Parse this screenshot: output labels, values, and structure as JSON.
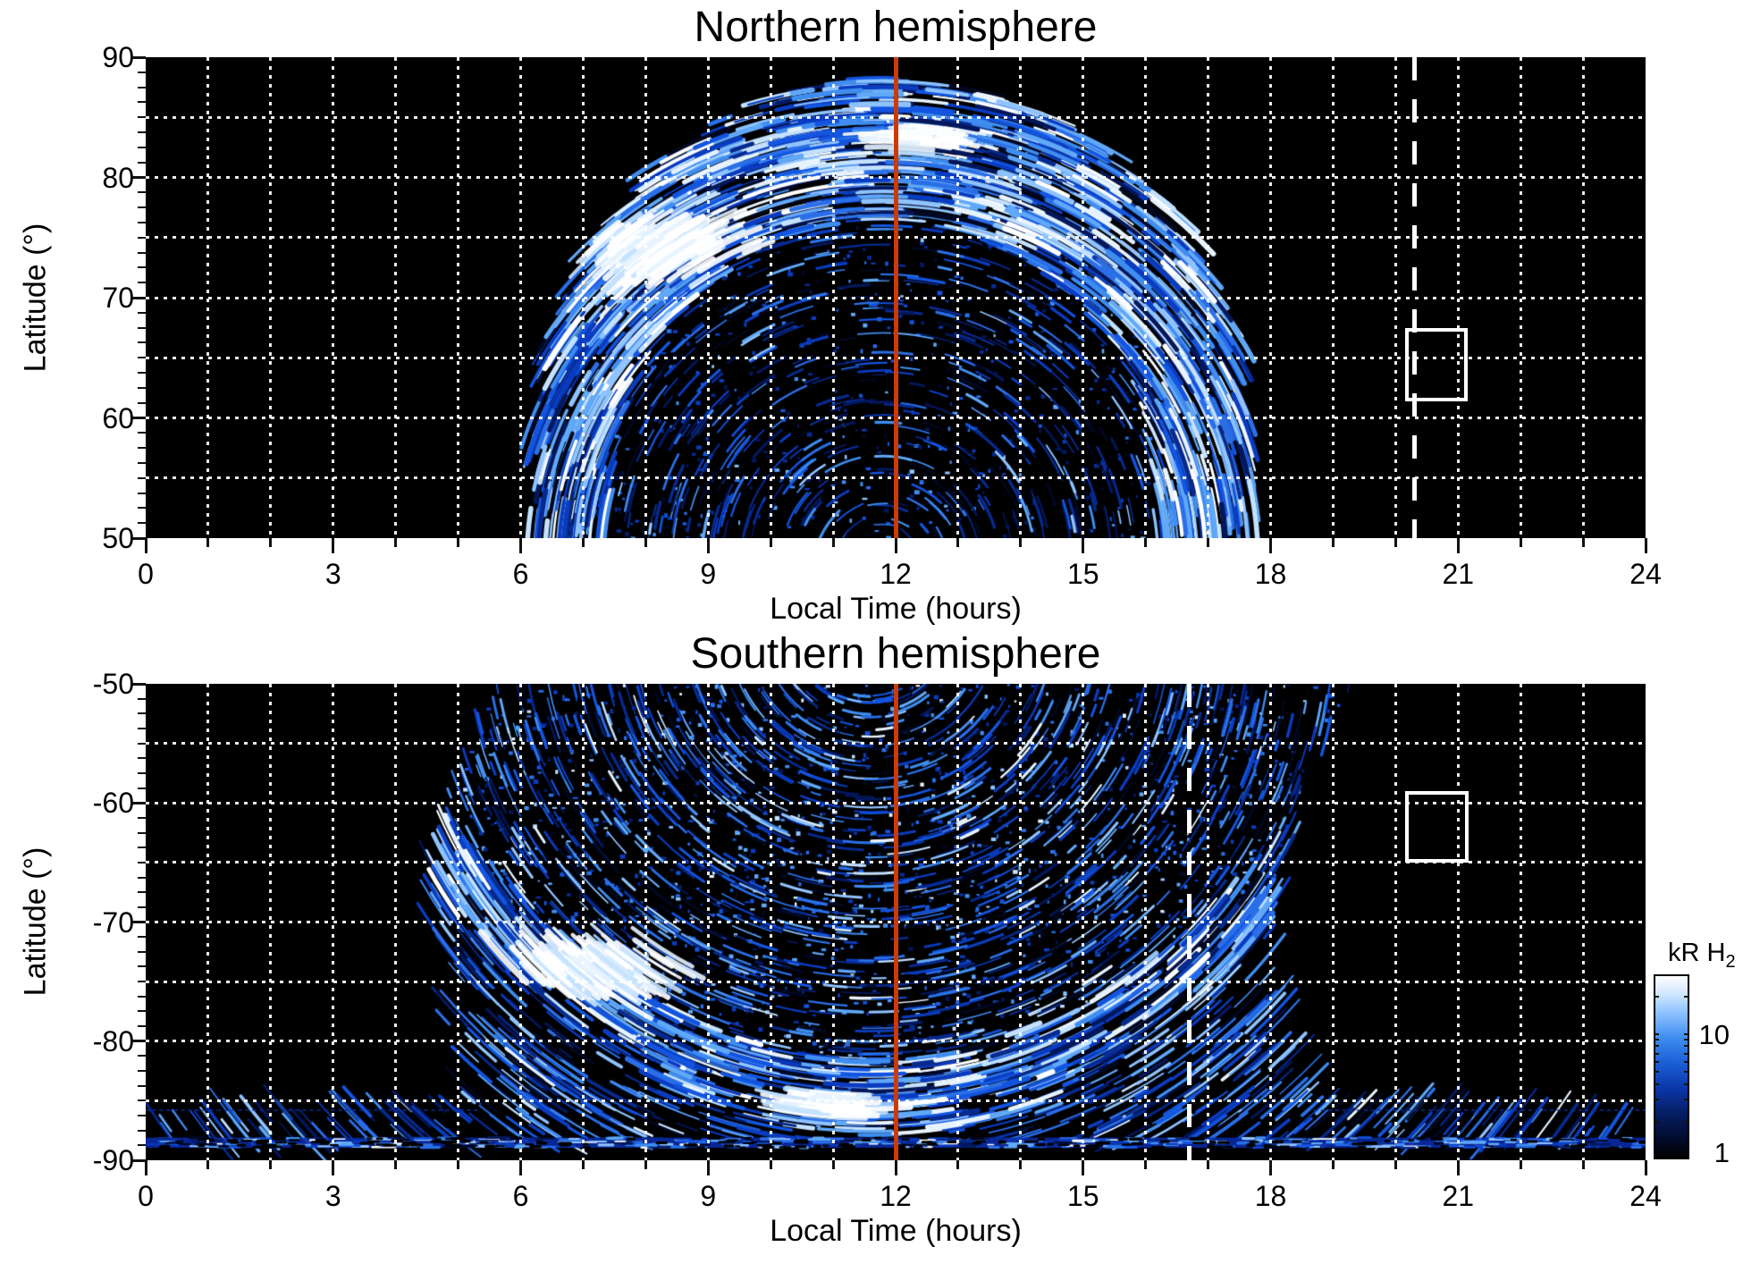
{
  "figure": {
    "background": "#ffffff"
  },
  "chart_data": [
    {
      "type": "heatmap",
      "hemisphere": "north",
      "title": "Northern hemisphere",
      "xlabel": "Local Time (hours)",
      "ylabel": "Latitude (°)",
      "xlim": [
        0,
        24
      ],
      "ylim": [
        50,
        90
      ],
      "x_ticks": [
        0,
        3,
        6,
        9,
        12,
        15,
        18,
        21,
        24
      ],
      "x_tick_labels": [
        "0",
        "3",
        "6",
        "9",
        "12",
        "15",
        "18",
        "21",
        "24"
      ],
      "y_ticks": [
        90,
        80,
        70,
        60,
        50
      ],
      "y_tick_labels": [
        "90",
        "80",
        "70",
        "60",
        "50"
      ],
      "x_minor_step": 1,
      "y_minor_step": 1.25,
      "grid": {
        "x_step_hours": 1,
        "y_step_deg": 5,
        "style": "white dotted"
      },
      "value_units": "kR H2",
      "value_scale": "log",
      "value_range": [
        1,
        30
      ],
      "annotations": {
        "noon_line_hour": 12,
        "dashed_line_hour": 20.3,
        "box": {
          "hour_range": [
            20.15,
            21.16
          ],
          "lat_range": [
            61.4,
            67.5
          ]
        }
      },
      "features": [
        "emission coverage only between ~6.3h and ~17.8h local time, dome-shaped, reaching ~88° near noon",
        "bright blue auroral band at lat ~72-86 across noon and down dawn/dusk flanks to 50°",
        "saturated white patch near 8.2h, 74.5°",
        "dark mottled polar core centered ~11.8h, 54-70°"
      ],
      "structure": {
        "seed": 11,
        "coverage": {
          "center_hour": 11.95,
          "half_width_hours": 5.75,
          "base_lat": 50,
          "top_lat": 88.2,
          "exp": 2.6
        },
        "core": {
          "center_hour": 11.8,
          "center_lat": 54,
          "rx_hours": 4.6,
          "ry_deg": 23.5
        },
        "arc_center": {
          "hour": 11.8,
          "lat": 48
        },
        "streaks": 5200,
        "speckle": 1600,
        "bright_spots": [
          {
            "hour": 8.2,
            "lat": 74.5,
            "sx": 90,
            "sy": 26,
            "n": 140
          },
          {
            "hour": 12.4,
            "lat": 83.2,
            "sx": 50,
            "sy": 15,
            "n": 40
          }
        ]
      }
    },
    {
      "type": "heatmap",
      "hemisphere": "south",
      "title": "Southern hemisphere",
      "xlabel": "Local Time (hours)",
      "ylabel": "Latitude (°)",
      "xlim": [
        0,
        24
      ],
      "ylim": [
        -90,
        -50
      ],
      "x_ticks": [
        0,
        3,
        6,
        9,
        12,
        15,
        18,
        21,
        24
      ],
      "x_tick_labels": [
        "0",
        "3",
        "6",
        "9",
        "12",
        "15",
        "18",
        "21",
        "24"
      ],
      "y_ticks": [
        -50,
        -60,
        -70,
        -80,
        -90
      ],
      "y_tick_labels": [
        "-50",
        "-60",
        "-70",
        "-80",
        "-90"
      ],
      "x_minor_step": 1,
      "y_minor_step": 1.25,
      "grid": {
        "x_step_hours": 1,
        "y_step_deg": 5,
        "style": "white dotted"
      },
      "value_units": "kR H2",
      "value_scale": "log",
      "value_range": [
        1,
        30
      ],
      "annotations": {
        "noon_line_hour": 12,
        "dashed_line_hour": 16.7,
        "box": {
          "hour_range": [
            20.15,
            21.17
          ],
          "lat_range": [
            -65,
            -59
          ]
        }
      },
      "features": [
        "emission coverage ~4.6h-19.3h local time",
        "bright auroral band dipping from -70° at 6h to -85° near 11h and back to -68° at 18h",
        "saturated white patch near 7.2h, -74°",
        "white patch near 10.8h, -85.3°",
        "thin emission stripe at -88.5° across all local times",
        "dark densely speckled core 7-16h, -50 to -75°"
      ],
      "structure": {
        "seed": 29,
        "coverage": {
          "left_base": 5.55,
          "left_amp": 0.95,
          "right_base": 19.25,
          "right_amp": 1.25
        },
        "band": {
          "min_lat": -84.8,
          "curv": 19,
          "center_hour": 11.6,
          "half_span": 6.6,
          "half_width_deg": 3.3
        },
        "low_band": {
          "start_lat": -84.5,
          "base_half_hours": 7.3,
          "widen_per_deg": 2.4
        },
        "polar_stripe": {
          "lat_top": -88.1,
          "lat_bot": -88.95
        },
        "faint_rows": [
          {
            "lat": -85.8,
            "hour_ranges": [
              [
                0,
                5.3
              ],
              [
                18.7,
                24
              ]
            ]
          }
        ],
        "arc_center": {
          "hour": 11.6,
          "lat": -45
        },
        "streaks": 6500,
        "speckle": 2400,
        "bright_spots": [
          {
            "hour": 7.2,
            "lat": -73.8,
            "sx": 85,
            "sy": 24,
            "n": 140
          },
          {
            "hour": 10.8,
            "lat": -85.3,
            "sx": 55,
            "sy": 14,
            "n": 60
          }
        ]
      }
    }
  ],
  "colorbar": {
    "title": "kR H",
    "title_sub": "2",
    "scale": "log",
    "min": 1,
    "max": 30,
    "tick_labels": [
      "10",
      "1"
    ],
    "tick_values": [
      10,
      1
    ],
    "minor_tick_values": [
      2,
      3,
      4,
      5,
      6,
      7,
      8,
      9,
      20,
      30
    ],
    "colors": [
      "#000000",
      "#020d33",
      "#061f66",
      "#0b36a8",
      "#1a5fd6",
      "#3f8df0",
      "#8fc3ff",
      "#cfe6ff",
      "#ffffff"
    ],
    "stops": [
      0,
      12,
      25,
      38,
      52,
      66,
      80,
      90,
      100
    ]
  },
  "style": {
    "red_line_color": "#cc3a06",
    "grid_color": "#ffffff",
    "dashed_color": "#ffffff",
    "box_color": "#ffffff",
    "tick_color": "#111111",
    "palette": {
      "dim": [
        "#010822",
        "#03175c",
        "#062a8f"
      ],
      "mid": [
        "#0a3cc0",
        "#1355e0",
        "#2a6fe8"
      ],
      "bright": [
        "#3f8df0",
        "#60a8f8",
        "#8fc3ff"
      ],
      "pale": [
        "#c4e2ff",
        "#e6f3ff"
      ],
      "white": "#ffffff"
    }
  }
}
